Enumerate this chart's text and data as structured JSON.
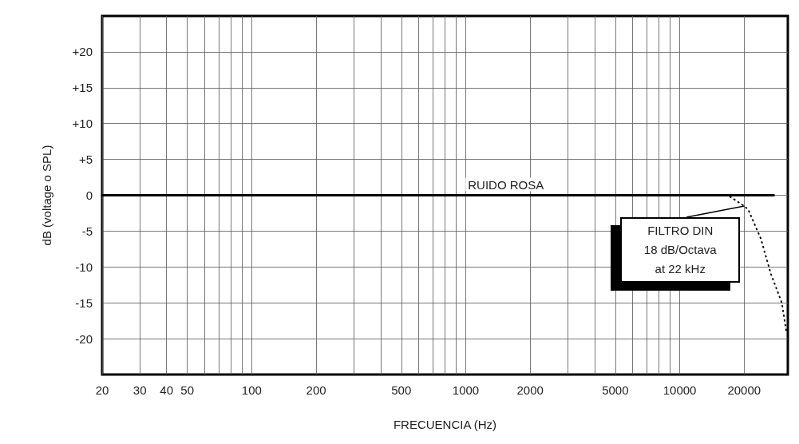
{
  "chart_data": {
    "type": "line",
    "xlabel": "FRECUENCIA (Hz)",
    "ylabel": "dB (voltage o SPL)",
    "log": "x",
    "grid": true,
    "legend": false,
    "marker": "none",
    "xlim": [
      20,
      32000
    ],
    "ylim": [
      -25,
      25
    ],
    "xticks": [
      20,
      30,
      40,
      50,
      {
        "value": 60,
        "label": null
      },
      {
        "value": 70,
        "label": null
      },
      {
        "value": 80,
        "label": null
      },
      {
        "value": 90,
        "label": null
      },
      100,
      200,
      {
        "value": 300,
        "label": null
      },
      {
        "value": 400,
        "label": null
      },
      500,
      {
        "value": 600,
        "label": null
      },
      {
        "value": 700,
        "label": null
      },
      {
        "value": 800,
        "label": null
      },
      {
        "value": 900,
        "label": null
      },
      1000,
      2000,
      {
        "value": 3000,
        "label": null
      },
      {
        "value": 4000,
        "label": null
      },
      5000,
      {
        "value": 6000,
        "label": null
      },
      {
        "value": 7000,
        "label": null
      },
      {
        "value": 8000,
        "label": null
      },
      {
        "value": 9000,
        "label": null
      },
      10000,
      20000
    ],
    "yticks": [
      {
        "value": -20,
        "label": "-20"
      },
      {
        "value": -15,
        "label": "-15"
      },
      {
        "value": -10,
        "label": "-10"
      },
      {
        "value": -5,
        "label": "-5"
      },
      0,
      {
        "value": 5,
        "label": "+5"
      },
      {
        "value": 10,
        "label": "+10"
      },
      {
        "value": 15,
        "label": "+15"
      },
      {
        "value": 20,
        "label": "+20"
      }
    ],
    "series": [
      {
        "name": "RUIDO ROSA",
        "color": "#000000",
        "line_style": "solid",
        "x": [
          20,
          1540,
          27500
        ],
        "values": [
          0,
          0,
          0
        ]
      },
      {
        "color": "#000000",
        "line_style": "dotted",
        "x": [
          17200,
          20000,
          20900,
          23900,
          26700,
          30000,
          31500
        ],
        "values": [
          -0.2,
          -1.5,
          -2,
          -6,
          -11,
          -15,
          -19
        ]
      }
    ],
    "annotations": [
      {
        "text": "FILTRO DIN\n18 dB/Octava\nat 22 kHz",
        "x": 20000,
        "y": -1.5
      }
    ]
  }
}
